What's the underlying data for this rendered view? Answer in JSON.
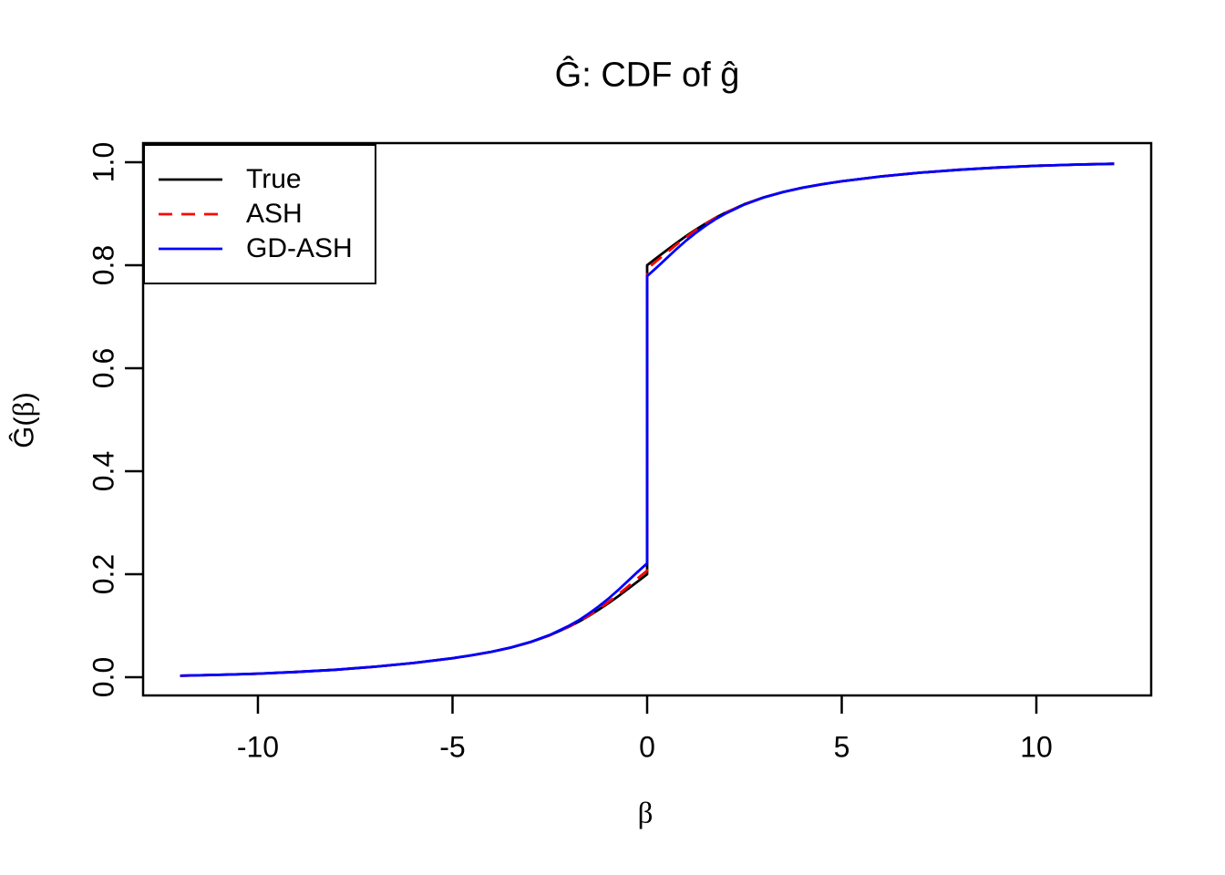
{
  "page": {
    "background": "#ffffff"
  },
  "chart_data": {
    "type": "line",
    "title": "Ĝ: CDF of ĝ",
    "xlabel": "β",
    "ylabel": "Ĝ(β)",
    "ylabel_parts": {
      "prefix": "Ĝ(",
      "beta": "β",
      "suffix": ")"
    },
    "xlim": [
      -12.95,
      12.95
    ],
    "ylim": [
      -0.0354,
      1.0372
    ],
    "grid": false,
    "axis_color": "#000000",
    "xticks": {
      "values": [
        -10,
        -5,
        0,
        5,
        10
      ],
      "labels": [
        "-10",
        "-5",
        "0",
        "5",
        "10"
      ]
    },
    "yticks": {
      "values": [
        0.0,
        0.2,
        0.4,
        0.6,
        0.8,
        1.0
      ],
      "labels": [
        "0.0",
        "0.2",
        "0.4",
        "0.6",
        "0.8",
        "1.0"
      ]
    },
    "legend": {
      "position": "top-left",
      "entries": [
        {
          "label": "True",
          "color": "#000000",
          "style": "solid"
        },
        {
          "label": "ASH",
          "color": "#FF0000",
          "style": "dashed"
        },
        {
          "label": "GD-ASH",
          "color": "#0000FF",
          "style": "solid"
        }
      ]
    },
    "jump_at_zero": {
      "True": [
        0.2,
        0.8
      ],
      "ASH": [
        0.207,
        0.793
      ],
      "GD-ASH": [
        0.221,
        0.779
      ]
    },
    "series": [
      {
        "name": "True",
        "color": "#000000",
        "style": "solid",
        "points": [
          [
            -12,
            0.0029
          ],
          [
            -11,
            0.0046
          ],
          [
            -10,
            0.0069
          ],
          [
            -9,
            0.0102
          ],
          [
            -8,
            0.0146
          ],
          [
            -7,
            0.0203
          ],
          [
            -6,
            0.0276
          ],
          [
            -5,
            0.0369
          ],
          [
            -4.5,
            0.0426
          ],
          [
            -4,
            0.0493
          ],
          [
            -3.5,
            0.0576
          ],
          [
            -3,
            0.0681
          ],
          [
            -2.5,
            0.0814
          ],
          [
            -2,
            0.0983
          ],
          [
            -1.75,
            0.1081
          ],
          [
            -1.5,
            0.119
          ],
          [
            -1.25,
            0.1308
          ],
          [
            -1,
            0.1434
          ],
          [
            -0.75,
            0.1569
          ],
          [
            -0.5,
            0.1709
          ],
          [
            -0.25,
            0.1853
          ],
          [
            0,
            0.2
          ],
          [
            0,
            0.8
          ],
          [
            0.25,
            0.8147
          ],
          [
            0.5,
            0.8291
          ],
          [
            0.75,
            0.8431
          ],
          [
            1,
            0.8566
          ],
          [
            1.25,
            0.8692
          ],
          [
            1.5,
            0.881
          ],
          [
            1.75,
            0.8919
          ],
          [
            2,
            0.9017
          ],
          [
            2.5,
            0.9186
          ],
          [
            3,
            0.9319
          ],
          [
            3.5,
            0.9424
          ],
          [
            4,
            0.9507
          ],
          [
            4.5,
            0.9574
          ],
          [
            5,
            0.9631
          ],
          [
            6,
            0.9724
          ],
          [
            7,
            0.9797
          ],
          [
            8,
            0.9854
          ],
          [
            9,
            0.9898
          ],
          [
            10,
            0.9931
          ],
          [
            11,
            0.9954
          ],
          [
            12,
            0.9971
          ]
        ]
      },
      {
        "name": "ASH",
        "color": "#FF0000",
        "style": "dashed",
        "points": [
          [
            -12,
            0.0029
          ],
          [
            -11,
            0.0046
          ],
          [
            -10,
            0.0069
          ],
          [
            -9,
            0.0102
          ],
          [
            -8,
            0.0146
          ],
          [
            -7,
            0.0203
          ],
          [
            -6,
            0.0276
          ],
          [
            -5,
            0.0369
          ],
          [
            -4.5,
            0.0426
          ],
          [
            -4,
            0.0493
          ],
          [
            -3.5,
            0.0576
          ],
          [
            -3,
            0.0681
          ],
          [
            -2.5,
            0.0815
          ],
          [
            -2,
            0.0985
          ],
          [
            -1.75,
            0.1085
          ],
          [
            -1.5,
            0.1198
          ],
          [
            -1.25,
            0.1322
          ],
          [
            -1,
            0.1456
          ],
          [
            -0.75,
            0.1603
          ],
          [
            -0.5,
            0.1755
          ],
          [
            -0.25,
            0.1913
          ],
          [
            0,
            0.207
          ],
          [
            0,
            0.793
          ],
          [
            0.25,
            0.8087
          ],
          [
            0.5,
            0.8245
          ],
          [
            0.75,
            0.8397
          ],
          [
            1,
            0.8544
          ],
          [
            1.25,
            0.8678
          ],
          [
            1.5,
            0.8802
          ],
          [
            1.75,
            0.8915
          ],
          [
            2,
            0.9015
          ],
          [
            2.5,
            0.9185
          ],
          [
            3,
            0.9319
          ],
          [
            3.5,
            0.9424
          ],
          [
            4,
            0.9507
          ],
          [
            4.5,
            0.9574
          ],
          [
            5,
            0.9631
          ],
          [
            6,
            0.9724
          ],
          [
            7,
            0.9797
          ],
          [
            8,
            0.9854
          ],
          [
            9,
            0.9898
          ],
          [
            10,
            0.9931
          ],
          [
            11,
            0.9954
          ],
          [
            12,
            0.9971
          ]
        ]
      },
      {
        "name": "GD-ASH",
        "color": "#0000FF",
        "style": "solid",
        "points": [
          [
            -12,
            0.0029
          ],
          [
            -11,
            0.0046
          ],
          [
            -10,
            0.0069
          ],
          [
            -9,
            0.0102
          ],
          [
            -8,
            0.0146
          ],
          [
            -7,
            0.0203
          ],
          [
            -6,
            0.0276
          ],
          [
            -5,
            0.037
          ],
          [
            -4.5,
            0.0427
          ],
          [
            -4,
            0.0494
          ],
          [
            -3.5,
            0.0577
          ],
          [
            -3,
            0.0683
          ],
          [
            -2.5,
            0.0821
          ],
          [
            -2,
            0.1001
          ],
          [
            -1.75,
            0.1109
          ],
          [
            -1.5,
            0.1233
          ],
          [
            -1.25,
            0.1371
          ],
          [
            -1,
            0.1522
          ],
          [
            -0.75,
            0.1689
          ],
          [
            -0.5,
            0.1863
          ],
          [
            -0.25,
            0.2041
          ],
          [
            0,
            0.221
          ],
          [
            0,
            0.779
          ],
          [
            0.25,
            0.7959
          ],
          [
            0.5,
            0.8137
          ],
          [
            0.75,
            0.8311
          ],
          [
            1,
            0.8478
          ],
          [
            1.25,
            0.8629
          ],
          [
            1.5,
            0.8767
          ],
          [
            1.75,
            0.8891
          ],
          [
            2,
            0.8999
          ],
          [
            2.5,
            0.9179
          ],
          [
            3,
            0.9317
          ],
          [
            3.5,
            0.9423
          ],
          [
            4,
            0.9506
          ],
          [
            4.5,
            0.9574
          ],
          [
            5,
            0.9631
          ],
          [
            6,
            0.9724
          ],
          [
            7,
            0.9797
          ],
          [
            8,
            0.9854
          ],
          [
            9,
            0.9898
          ],
          [
            10,
            0.9931
          ],
          [
            11,
            0.9954
          ],
          [
            12,
            0.9971
          ]
        ]
      }
    ]
  }
}
